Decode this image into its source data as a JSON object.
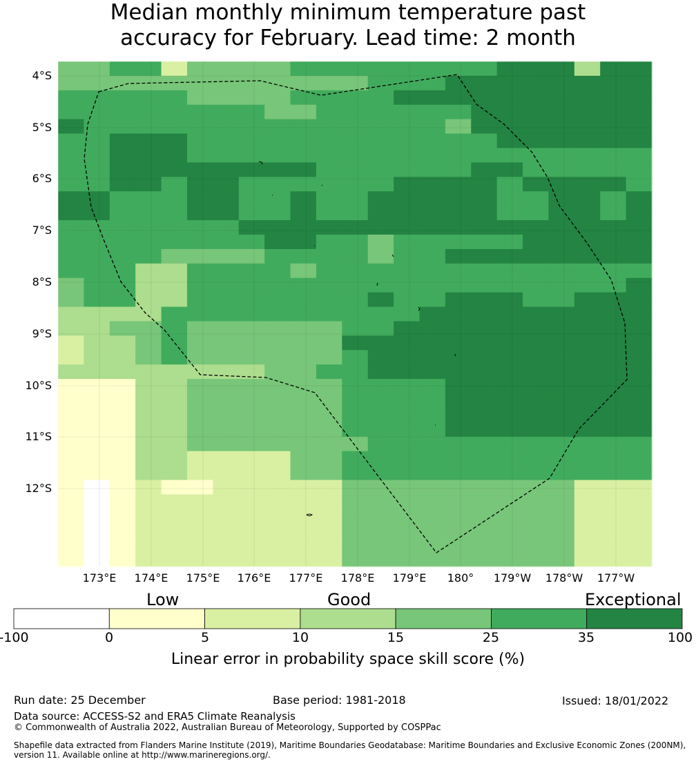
{
  "title_line1": "Median monthly minimum temperature past",
  "title_line2": "accuracy for February. Lead time: 2 month",
  "lat_labels": [
    "4°S",
    "5°S",
    "6°S",
    "7°S",
    "8°S",
    "9°S",
    "10°S",
    "11°S",
    "12°S"
  ],
  "lon_labels": [
    "173°E",
    "174°E",
    "175°E",
    "176°E",
    "177°E",
    "178°E",
    "179°E",
    "180°",
    "179°W",
    "178°W",
    "177°W"
  ],
  "colorbar": {
    "categories": [
      "Low",
      "Good",
      "Exceptional"
    ],
    "ticks": [
      "-100",
      "0",
      "5",
      "10",
      "15",
      "25",
      "35",
      "100"
    ],
    "colors": [
      "#ffffff",
      "#ffffcc",
      "#d9f0a3",
      "#addd8e",
      "#78c679",
      "#41ab5d",
      "#238443"
    ],
    "label": "Linear error in probability space skill score (%)"
  },
  "footer": {
    "run_date": "Run date: 25 December",
    "base_period": "Base period: 1981-2018",
    "issued": "Issued: 18/01/2022",
    "data_source": "Data source: ACCESS-S2 and ERA5 Climate Reanalysis",
    "copyright": "© Commonwealth of Australia 2022, Australian Bureau of Meteorology, Supported by COSPPac",
    "shapefile": "Shapefile data extracted from Flanders Marine Institute (2019), Maritime Boundaries Geodatabase: Maritime Boundaries and Exclusive Economic Zones (200NM), version 11. Available online at http://www.marineregions.org/."
  },
  "grid_categories": [
    "44552444455555555666366",
    "44444444444455566666666",
    "55555444455556666666666",
    "55555555445555556666666",
    "65555555555555546666666",
    "55666555555555555666666",
    "55666555555555555555555",
    "55666666665555556655555",
    "55665665555556666566665",
    "66555665565566666556656",
    "66555665565566666556656",
    "55555556666666666666666",
    "55555555665545555566666",
    "55554444555545566666666",
    "55533555545555555555555",
    "45533555555555555555556",
    "45533555555565566655666",
    "33335555555555666666666",
    "33445444444556666666666",
    "23345444444666666666666",
    "23345444444566666666666",
    "33333333445566666666666",
    "11133444444555566666666",
    "11133444444555566666666",
    "11133444444555566666666",
    "11133444444555566666666",
    "11133444444455555555555",
    "11133222244555555555555",
    "11133222244555555555555",
    "10121122222444444444222",
    "10122222222444444444222",
    "10122222222444444444222",
    "10122222222444444444222",
    "10122222222444444444222",
    "10122222222444444444222"
  ]
}
